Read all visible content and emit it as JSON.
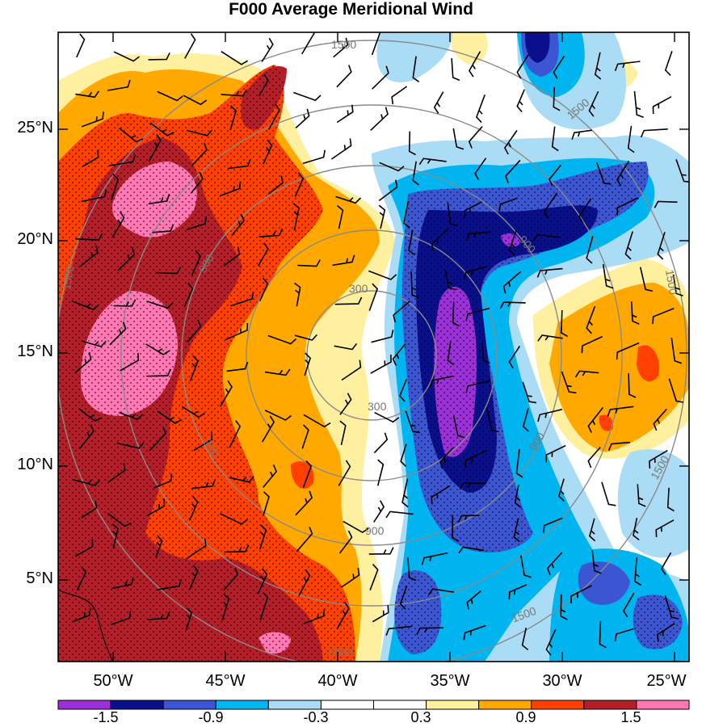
{
  "title": "F000 Average Meridional Wind",
  "lat_labels": [
    "25°N",
    "20°N",
    "15°N",
    "10°N",
    "5°N"
  ],
  "lon_labels": [
    "50°W",
    "45°W",
    "40°W",
    "35°W",
    "30°W",
    "25°W"
  ],
  "colorbar": {
    "labels": [
      "-1.5",
      "-0.9",
      "-0.3",
      "0.3",
      "0.9",
      "1.5"
    ],
    "colors": [
      "#9b30d8",
      "#0a0f8c",
      "#3c55d2",
      "#00b4f0",
      "#aadcf5",
      "#ffffff",
      "#ffffff",
      "#fff0a0",
      "#ffa800",
      "#ff4000",
      "#b41e28",
      "#ff78b4"
    ]
  },
  "contour_labels": [
    "1500",
    "1500",
    "1500",
    "1500",
    "1500",
    "1500",
    "1500",
    "900",
    "900",
    "900",
    "900",
    "900",
    "300",
    "300"
  ],
  "chart_data": {
    "type": "map",
    "title": "F000 Average Meridional Wind",
    "x_range": [
      "52.5°W",
      "25°W"
    ],
    "y_range": [
      "1.5°N",
      "29°N"
    ],
    "field": "meridional wind (shaded), wind barbs, range rings",
    "color_levels": [
      -1.5,
      -1.2,
      -0.9,
      -0.6,
      -0.3,
      0,
      0.3,
      0.6,
      0.9,
      1.2,
      1.5
    ],
    "ring_labels": [
      300,
      900,
      1500
    ],
    "stippling": true
  }
}
